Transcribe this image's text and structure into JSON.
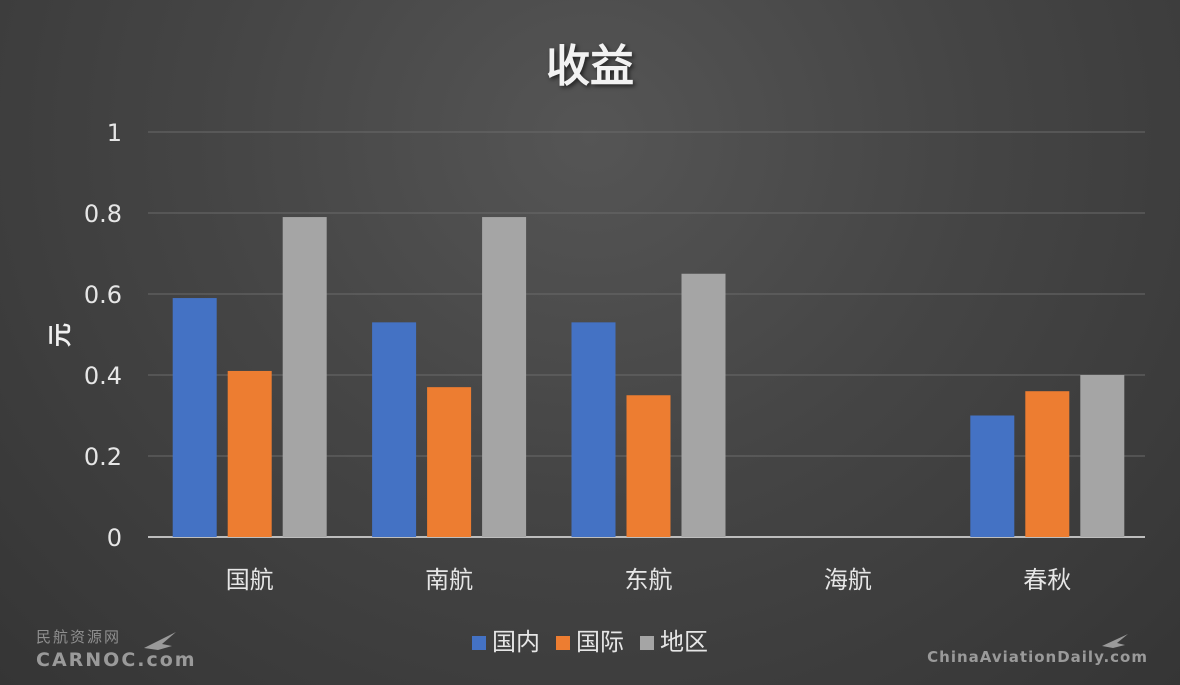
{
  "chart_data": {
    "type": "bar",
    "title": "收益",
    "ylabel": "元",
    "xlabel": "",
    "ylim": [
      0,
      1
    ],
    "yticks": [
      "1",
      "0.8",
      "0.6",
      "0.4",
      "0.2",
      "0"
    ],
    "ytick_values": [
      1,
      0.8,
      0.6,
      0.4,
      0.2,
      0
    ],
    "categories": [
      "国航",
      "南航",
      "东航",
      "海航",
      "春秋"
    ],
    "series": [
      {
        "name": "国内",
        "color": "#4472c4",
        "values": [
          0.59,
          0.53,
          0.53,
          null,
          0.3
        ]
      },
      {
        "name": "国际",
        "color": "#ed7d31",
        "values": [
          0.41,
          0.37,
          0.35,
          null,
          0.36
        ]
      },
      {
        "name": "地区",
        "color": "#a5a5a5",
        "values": [
          0.79,
          0.79,
          0.65,
          null,
          0.4
        ]
      }
    ],
    "grid": true,
    "legend": "bottom"
  },
  "watermarks": {
    "left_cn": "民航资源网",
    "left_en": "CARNOC.com",
    "right": "ChinaAviationDaily.com"
  },
  "icons": {
    "left": "airplane-logo-icon",
    "right": "airplane-logo-icon"
  }
}
